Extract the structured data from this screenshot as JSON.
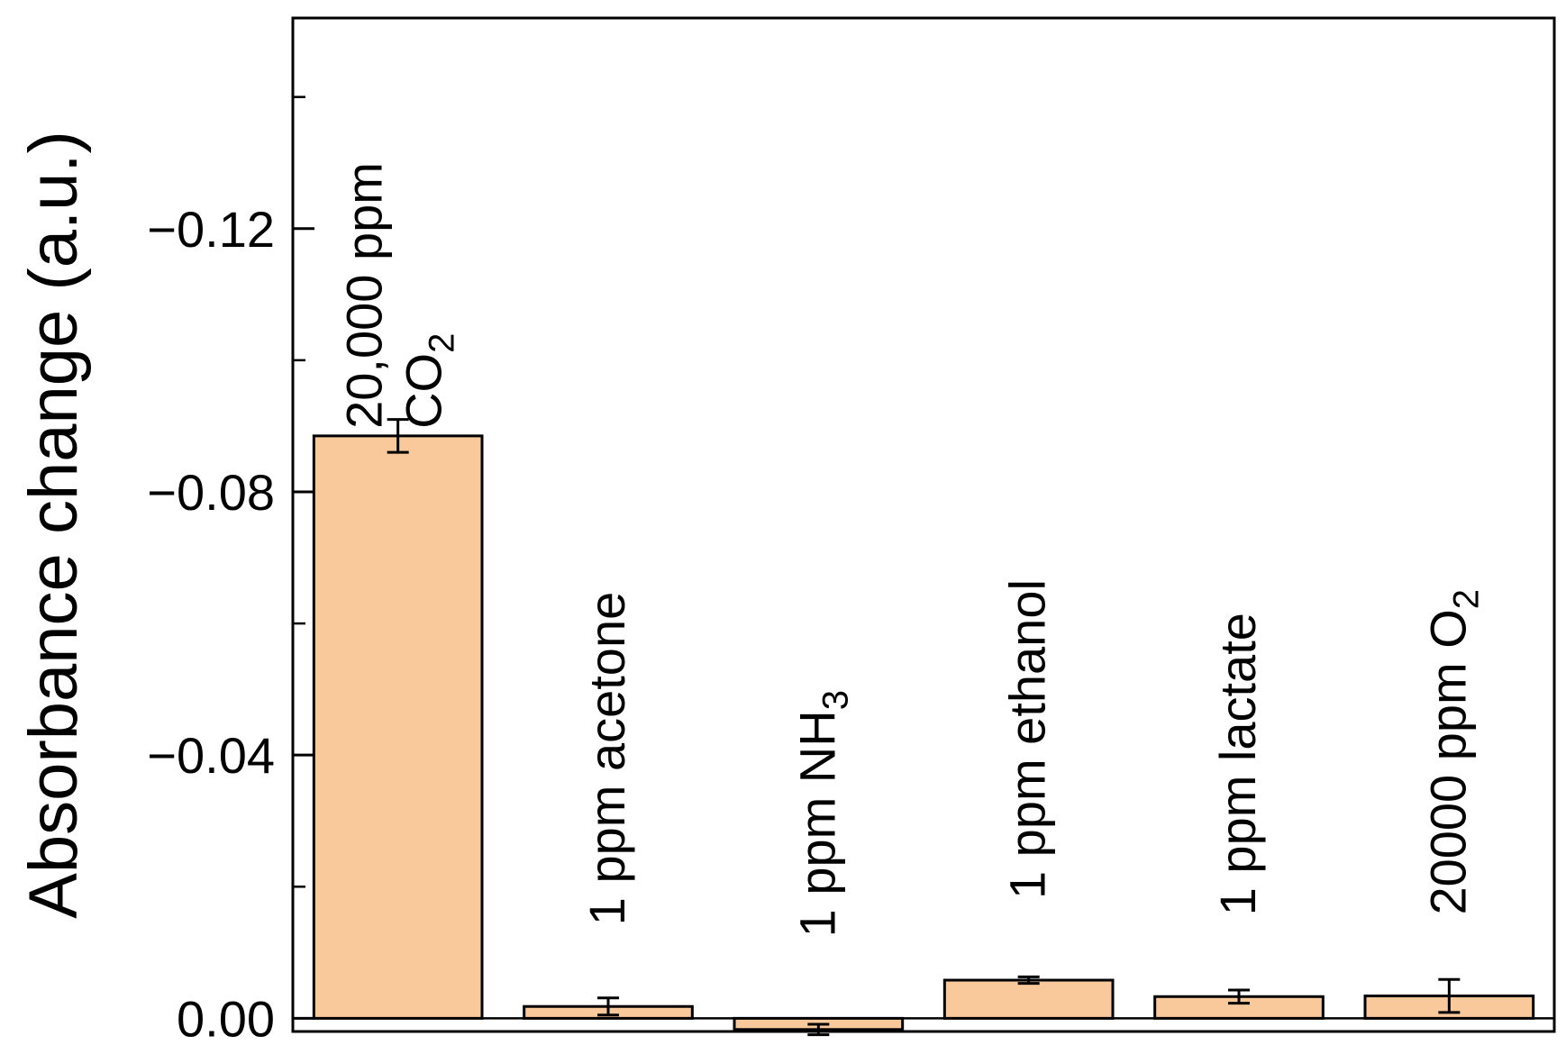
{
  "colors": {
    "bar_fill": "#f9c89b",
    "bar_stroke": "#000000",
    "axis": "#000000",
    "background": "#ffffff"
  },
  "chart_data": {
    "type": "bar",
    "title": "",
    "xlabel": "",
    "ylabel": "Absorbance change (a.u.)",
    "y_axis_inverted": true,
    "ylim": [
      0.002,
      -0.152
    ],
    "yticks": [
      -0.12,
      -0.08,
      -0.04,
      0.0
    ],
    "ytick_labels": [
      "−0.12",
      "−0.08",
      "−0.04",
      "0.00"
    ],
    "y_minor_tick_step": 0.02,
    "grid": false,
    "legend": "none",
    "categories": [
      {
        "main": "20,000 ppm",
        "line2": "CO",
        "sub": "2",
        "sub_rest": ""
      },
      {
        "main": "1 ppm acetone",
        "line2": "",
        "sub": "",
        "sub_rest": ""
      },
      {
        "main": "1 ppm NH",
        "line2": "",
        "sub": "3",
        "sub_rest": ""
      },
      {
        "main": "1 ppm ethanol",
        "line2": "",
        "sub": "",
        "sub_rest": ""
      },
      {
        "main": "1 ppm lactate",
        "line2": "",
        "sub": "",
        "sub_rest": ""
      },
      {
        "main": "20000 ppm O",
        "line2": "",
        "sub": "2",
        "sub_rest": ""
      }
    ],
    "values": [
      -0.0885,
      -0.0018,
      0.0017,
      -0.0058,
      -0.0033,
      -0.0034
    ],
    "errors": [
      0.0025,
      0.0013,
      0.0008,
      0.0005,
      0.001,
      0.0025
    ]
  }
}
